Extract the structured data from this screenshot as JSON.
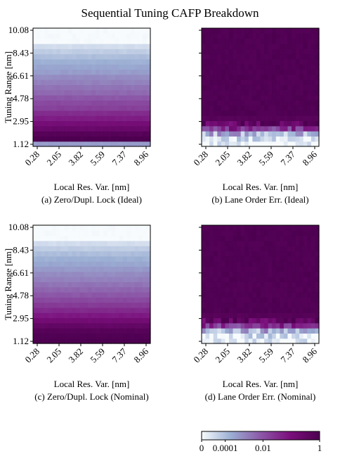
{
  "title": "Sequential Tuning CAFP Breakdown",
  "chart_data": [
    {
      "type": "heatmap",
      "caption": "(a) Zero/Dupl. Lock (Ideal)",
      "xlabel": "Local Res. Var. [nm]",
      "ylabel": "Tuning Range [nm]",
      "x_ticks": [
        "0.28",
        "2.05",
        "3.82",
        "5.59",
        "7.37",
        "8.96"
      ],
      "y_ticks": [
        "1.12",
        "2.95",
        "4.78",
        "6.61",
        "8.43",
        "10.08"
      ],
      "xlim": [
        0.28,
        8.96
      ],
      "ylim": [
        1.12,
        10.08
      ],
      "pattern": "rows",
      "profile": [
        0.3,
        1.0,
        0.95,
        0.85,
        0.78,
        0.7,
        0.65,
        0.58,
        0.55,
        0.5,
        0.45,
        0.42,
        0.38,
        0.35,
        0.3,
        0.27,
        0.24,
        0.2,
        0.15,
        0.1,
        0.0,
        0.0,
        0.0
      ]
    },
    {
      "type": "heatmap",
      "caption": "(b) Lane Order Err. (Ideal)",
      "xlabel": "Local Res. Var. [nm]",
      "ylabel": "",
      "x_ticks": [
        "0.28",
        "2.05",
        "3.82",
        "5.59",
        "7.37",
        "8.96"
      ],
      "y_ticks": [
        "1.12",
        "2.95",
        "4.78",
        "6.61",
        "8.43",
        "10.08"
      ],
      "xlim": [
        0.28,
        8.96
      ],
      "ylim": [
        1.12,
        10.08
      ],
      "pattern": "bottom-noise",
      "profile": [
        0.0,
        0.05,
        0.25,
        0.65,
        0.9,
        0.97,
        1.0,
        1.0,
        1.0,
        1.0,
        1.0,
        1.0,
        1.0,
        1.0,
        1.0,
        1.0,
        1.0,
        1.0,
        1.0,
        1.0,
        1.0,
        1.0,
        1.0
      ]
    },
    {
      "type": "heatmap",
      "caption": "(c) Zero/Dupl. Lock (Nominal)",
      "xlabel": "Local Res. Var. [nm]",
      "ylabel": "Tuning Range [nm]",
      "x_ticks": [
        "0.28",
        "2.05",
        "3.82",
        "5.59",
        "7.37",
        "8.96"
      ],
      "y_ticks": [
        "1.12",
        "2.95",
        "4.78",
        "6.61",
        "8.43",
        "10.08"
      ],
      "xlim": [
        0.28,
        8.96
      ],
      "ylim": [
        1.12,
        10.08
      ],
      "pattern": "rows",
      "profile": [
        1.0,
        0.98,
        0.95,
        0.88,
        0.8,
        0.72,
        0.66,
        0.6,
        0.55,
        0.5,
        0.46,
        0.42,
        0.38,
        0.35,
        0.31,
        0.27,
        0.24,
        0.2,
        0.15,
        0.1,
        0.0,
        0.0,
        0.0
      ]
    },
    {
      "type": "heatmap",
      "caption": "(d) Lane Order Err. (Nominal)",
      "xlabel": "Local Res. Var. [nm]",
      "ylabel": "",
      "x_ticks": [
        "0.28",
        "2.05",
        "3.82",
        "5.59",
        "7.37",
        "8.96"
      ],
      "y_ticks": [
        "1.12",
        "2.95",
        "4.78",
        "6.61",
        "8.43",
        "10.08"
      ],
      "xlim": [
        0.28,
        8.96
      ],
      "ylim": [
        1.12,
        10.08
      ],
      "pattern": "bottom-noise",
      "profile": [
        0.0,
        0.05,
        0.25,
        0.65,
        0.9,
        0.97,
        1.0,
        1.0,
        1.0,
        1.0,
        1.0,
        1.0,
        1.0,
        1.0,
        1.0,
        1.0,
        1.0,
        1.0,
        1.0,
        1.0,
        1.0,
        1.0,
        1.0
      ]
    }
  ],
  "colorbar": {
    "scale": "log",
    "ticks": [
      "0",
      "0.0001",
      "0.01",
      "1"
    ],
    "colors": [
      "#f7fbfd",
      "#9aaed3",
      "#8c58a8",
      "#7b0f7c",
      "#4d0050"
    ]
  }
}
